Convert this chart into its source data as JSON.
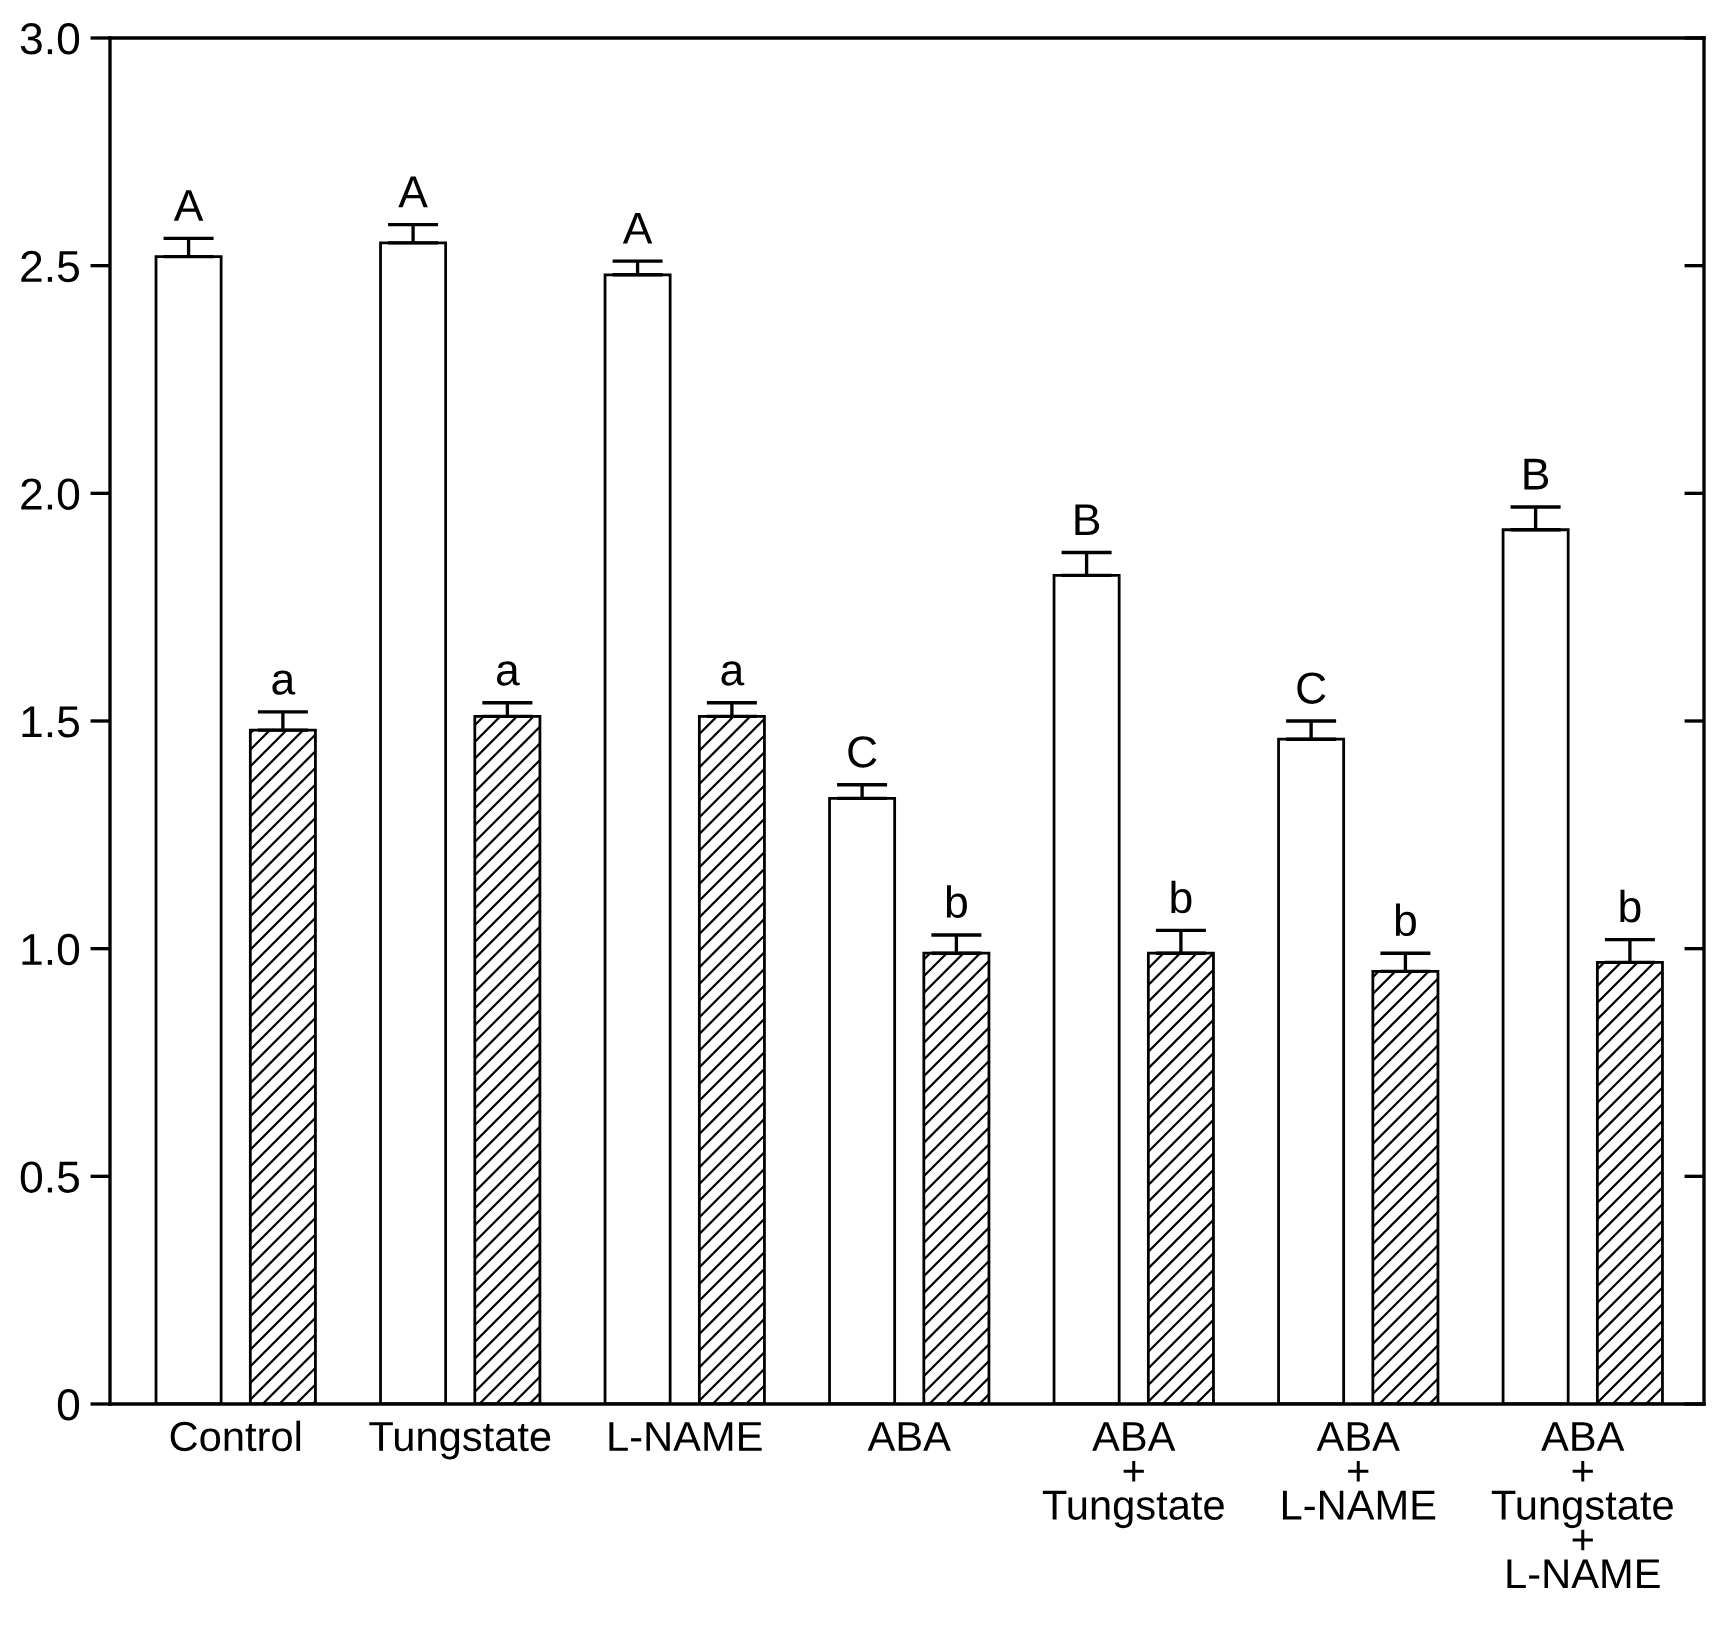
{
  "chart_data": {
    "type": "bar",
    "categories": [
      "Control",
      "Tungstate",
      "L-NAME",
      "ABA",
      "ABA\n+\nTungstate",
      "ABA\n+\nL-NAME",
      "ABA\n+\nTungstate\n+\nL-NAME"
    ],
    "series": [
      {
        "color": "#ffffff",
        "values": [
          2.52,
          2.55,
          2.48,
          1.33,
          1.82,
          1.46,
          1.92
        ],
        "errors": [
          0.04,
          0.04,
          0.03,
          0.03,
          0.05,
          0.04,
          0.05
        ],
        "value_labels": [
          "A",
          "A",
          "A",
          "C",
          "B",
          "C",
          "B"
        ]
      },
      {
        "color": "#000000",
        "values": [
          1.48,
          1.51,
          1.51,
          0.99,
          0.99,
          0.95,
          0.97
        ],
        "errors": [
          0.04,
          0.03,
          0.03,
          0.04,
          0.05,
          0.04,
          0.05
        ],
        "value_labels": [
          "a",
          "a",
          "a",
          "b",
          "b",
          "b",
          "b"
        ]
      }
    ],
    "ylim": [
      0,
      3
    ],
    "yticks": [
      0,
      0.5,
      {
        "value": 1,
        "label": "1.0"
      },
      1.5,
      {
        "value": 2,
        "label": "2.0"
      },
      2.5,
      {
        "value": 3,
        "label": "3.0"
      }
    ],
    "grid": false
  }
}
